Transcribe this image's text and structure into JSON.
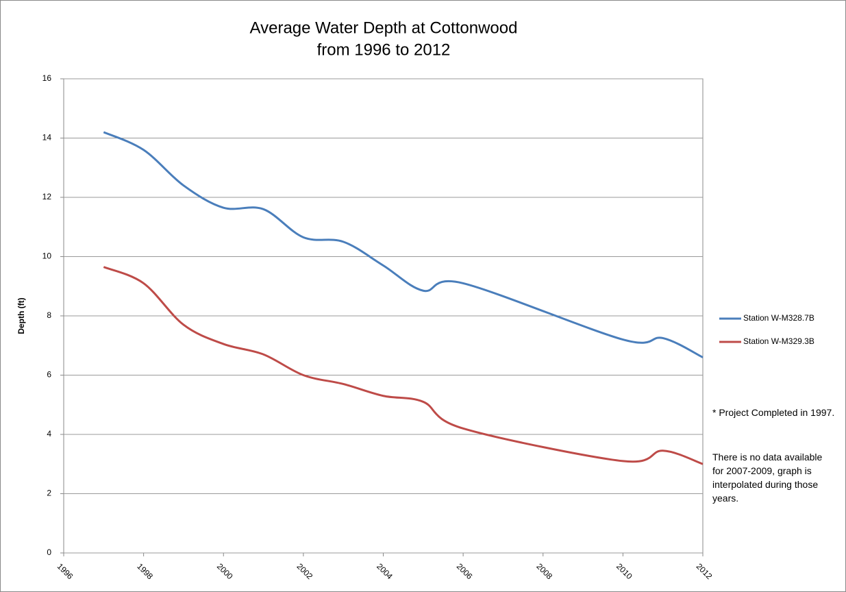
{
  "chart_data": {
    "type": "line",
    "title": [
      "Average Water Depth at Cottonwood",
      "from 1996 to 2012"
    ],
    "ylabel": "Depth (ft)",
    "x": [
      1997,
      1998,
      1999,
      2000,
      2001,
      2002,
      2003,
      2004,
      2005,
      2006,
      2010,
      2011,
      2012
    ],
    "series": [
      {
        "name": "Station W-M328.7B",
        "color": "#4a7ebb",
        "values": [
          14.2,
          13.6,
          12.4,
          11.65,
          11.6,
          10.65,
          10.5,
          9.7,
          8.85,
          9.1,
          7.2,
          7.25,
          6.6
        ]
      },
      {
        "name": "Station W-M329.3B",
        "color": "#be4b48",
        "values": [
          9.65,
          9.1,
          7.7,
          7.05,
          6.7,
          6.0,
          5.7,
          5.3,
          5.1,
          4.2,
          3.1,
          3.45,
          3.0
        ]
      }
    ],
    "xlim": [
      1996,
      2012
    ],
    "xticks": [
      1996,
      1998,
      2000,
      2002,
      2004,
      2006,
      2008,
      2010,
      2012
    ],
    "ylim": [
      0,
      16
    ],
    "yticks": [
      0,
      2,
      4,
      6,
      8,
      10,
      12,
      14,
      16
    ],
    "grid": true,
    "legend": "right",
    "annotations": [
      "* Project Completed in 1997.",
      "There is no data available for 2007-2009, graph is interpolated during those years."
    ]
  }
}
